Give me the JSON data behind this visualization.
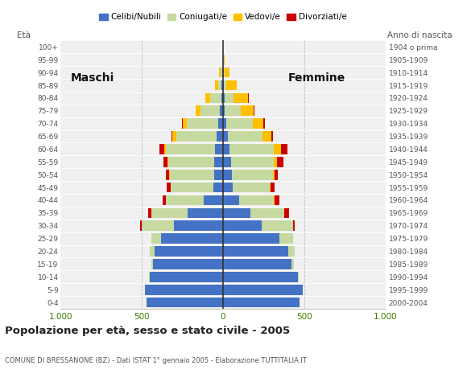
{
  "age_groups": [
    "0-4",
    "5-9",
    "10-14",
    "15-19",
    "20-24",
    "25-29",
    "30-34",
    "35-39",
    "40-44",
    "45-49",
    "50-54",
    "55-59",
    "60-64",
    "65-69",
    "70-74",
    "75-79",
    "80-84",
    "85-89",
    "90-94",
    "95-99",
    "100+"
  ],
  "birth_years": [
    "2000-2004",
    "1995-1999",
    "1990-1994",
    "1985-1989",
    "1980-1984",
    "1975-1979",
    "1970-1974",
    "1965-1969",
    "1960-1964",
    "1955-1959",
    "1950-1954",
    "1945-1949",
    "1940-1944",
    "1935-1939",
    "1930-1934",
    "1925-1929",
    "1920-1924",
    "1915-1919",
    "1910-1914",
    "1905-1909",
    "1904 o prima"
  ],
  "male": {
    "celibi": [
      470,
      480,
      450,
      430,
      420,
      380,
      300,
      220,
      120,
      60,
      55,
      55,
      50,
      40,
      30,
      18,
      12,
      8,
      5,
      2,
      0
    ],
    "coniugati": [
      1,
      2,
      5,
      10,
      30,
      60,
      200,
      220,
      230,
      260,
      270,
      280,
      300,
      250,
      195,
      120,
      65,
      20,
      10,
      3,
      0
    ],
    "vedovi": [
      0,
      0,
      0,
      0,
      0,
      1,
      1,
      1,
      2,
      3,
      5,
      5,
      10,
      20,
      25,
      30,
      30,
      20,
      8,
      2,
      0
    ],
    "divorziati": [
      0,
      0,
      0,
      0,
      1,
      2,
      8,
      18,
      18,
      22,
      20,
      25,
      30,
      8,
      5,
      2,
      0,
      0,
      0,
      0,
      0
    ]
  },
  "female": {
    "celibi": [
      470,
      490,
      460,
      420,
      400,
      350,
      240,
      170,
      100,
      60,
      55,
      50,
      40,
      30,
      20,
      12,
      8,
      5,
      3,
      2,
      0
    ],
    "coniugati": [
      1,
      2,
      5,
      15,
      40,
      80,
      190,
      205,
      215,
      230,
      255,
      265,
      275,
      215,
      165,
      95,
      55,
      15,
      8,
      2,
      0
    ],
    "vedovi": [
      0,
      0,
      0,
      0,
      0,
      1,
      1,
      2,
      5,
      5,
      10,
      20,
      40,
      55,
      65,
      80,
      90,
      65,
      30,
      8,
      0
    ],
    "divorziati": [
      0,
      0,
      0,
      0,
      1,
      2,
      10,
      30,
      30,
      25,
      20,
      35,
      40,
      10,
      10,
      5,
      5,
      0,
      0,
      0,
      0
    ]
  },
  "colors": {
    "celibi": "#4472c4",
    "coniugati": "#c5d9a0",
    "vedovi": "#ffc000",
    "divorziati": "#cc0000"
  },
  "legend_labels": [
    "Celibi/Nubili",
    "Coniugati/e",
    "Vedovi/e",
    "Divorziati/e"
  ],
  "title": "Popolazione per età, sesso e stato civile - 2005",
  "subtitle": "COMUNE DI BRESSANONE (BZ) - Dati ISTAT 1° gennaio 2005 - Elaborazione TUTTITALIA.IT",
  "ylabel_left": "Età",
  "ylabel_right": "Anno di nascita",
  "xlim": 1000,
  "bg_color": "#ffffff",
  "plot_bg_color": "#f0f0f0"
}
